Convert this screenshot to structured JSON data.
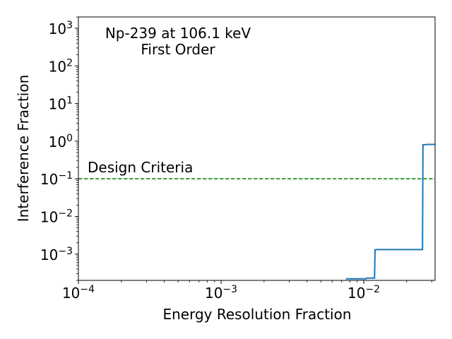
{
  "chart_data": {
    "type": "line",
    "title_lines": [
      "Np-239 at 106.1 keV",
      "First Order"
    ],
    "xlabel": "Energy Resolution Fraction",
    "ylabel": "Interference Fraction",
    "xscale": "log",
    "yscale": "log",
    "xlim": [
      0.0001,
      0.0316
    ],
    "ylim": [
      0.0002,
      2000
    ],
    "x_ticks": [
      {
        "value": 0.0001,
        "base": "10",
        "exp": "−4"
      },
      {
        "value": 0.001,
        "base": "10",
        "exp": "−3"
      },
      {
        "value": 0.01,
        "base": "10",
        "exp": "−2"
      }
    ],
    "y_ticks": [
      {
        "value": 0.001,
        "base": "10",
        "exp": "−3"
      },
      {
        "value": 0.01,
        "base": "10",
        "exp": "−2"
      },
      {
        "value": 0.1,
        "base": "10",
        "exp": "−1"
      },
      {
        "value": 1,
        "base": "10",
        "exp": "0"
      },
      {
        "value": 10,
        "base": "10",
        "exp": "1"
      },
      {
        "value": 100,
        "base": "10",
        "exp": "2"
      },
      {
        "value": 1000,
        "base": "10",
        "exp": "3"
      }
    ],
    "series": [
      {
        "color": "#1f77b4",
        "x": [
          0.0075,
          0.0104,
          0.0105,
          0.0119,
          0.012,
          0.0123,
          0.0124,
          0.0258,
          0.026,
          0.0262,
          0.028,
          0.03,
          0.0316
        ],
        "y": [
          0.00022,
          0.00022,
          0.00023,
          0.00023,
          0.0013,
          0.0013,
          0.00132,
          0.00132,
          0.8,
          0.8,
          0.82,
          0.82,
          0.82
        ]
      }
    ],
    "reference_line": {
      "label": "Design Criteria",
      "y": 0.1,
      "color": "#008000",
      "style": "dashed"
    },
    "grid": false,
    "legend": "none"
  }
}
